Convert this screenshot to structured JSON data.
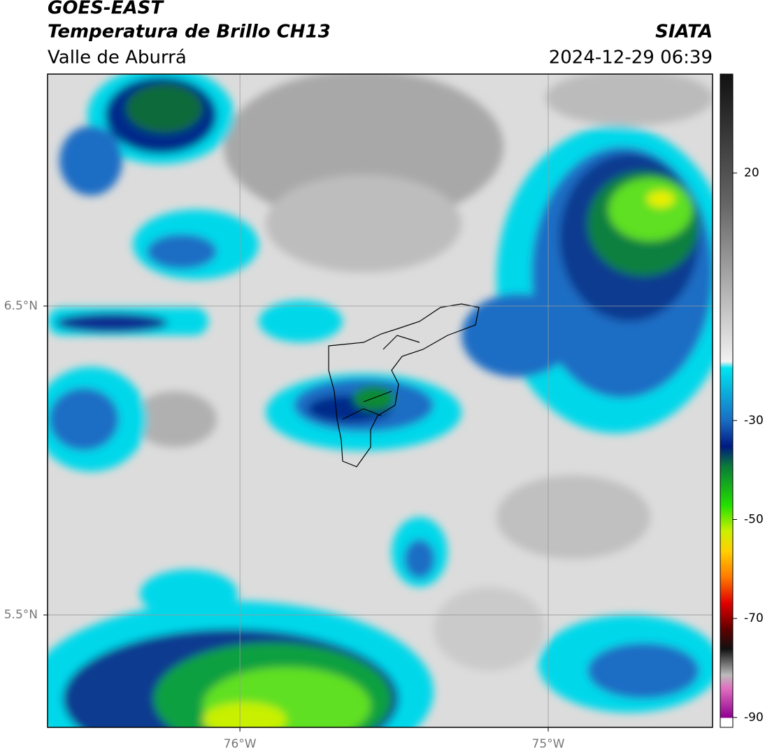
{
  "chart_data": {
    "type": "map",
    "title": "GOES-EAST",
    "subtitle": "Temperatura de Brillo CH13",
    "region": "Valle de Aburrá",
    "source": "SIATA",
    "timestamp": "2024-12-29 06:39",
    "xlim": [
      -76.624,
      -74.467
    ],
    "ylim": [
      5.136,
      7.251
    ],
    "xticks": [
      {
        "value": -76,
        "label": "76°W"
      },
      {
        "value": -75,
        "label": "75°W"
      }
    ],
    "yticks": [
      {
        "value": 6.5,
        "label": "6.5°N"
      },
      {
        "value": 5.5,
        "label": "5.5°N"
      }
    ],
    "grid": true,
    "colorbar": {
      "lim": [
        -92,
        40
      ],
      "ticks": [
        20,
        -30,
        -50,
        -70,
        -90
      ]
    }
  }
}
